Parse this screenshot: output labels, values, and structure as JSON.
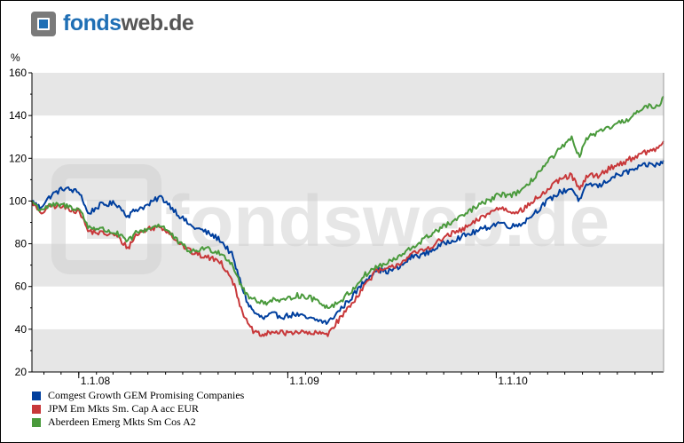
{
  "logo": {
    "part1": "fonds",
    "part2": "web.de"
  },
  "watermark": "fondsweb.de",
  "colors": {
    "blue": "#003f9e",
    "red": "#c8383a",
    "green": "#4a9a3c",
    "band": "#e6e6e6",
    "brand_blue": "#1f6fb5",
    "brand_gray": "#7a7a7a"
  },
  "chart_data": {
    "type": "line",
    "ylabel": "%",
    "ylim": [
      20,
      160
    ],
    "yticks": [
      20,
      40,
      60,
      80,
      100,
      120,
      140,
      160
    ],
    "xlim": [
      "2007-10-11",
      "2010-10-21"
    ],
    "xticks": [
      {
        "date": "2008-01-01",
        "label": "1.1.08"
      },
      {
        "date": "2009-01-01",
        "label": "1.1.09"
      },
      {
        "date": "2010-01-01",
        "label": "1.1.10"
      }
    ],
    "grid": "horizontal bands",
    "legend_position": "bottom-left",
    "series": [
      {
        "name": "Comgest Growth GEM Promising Companies",
        "color": "#003f9e",
        "points": [
          [
            "2007-10-11",
            100
          ],
          [
            "2007-10-25",
            97
          ],
          [
            "2007-11-15",
            103
          ],
          [
            "2007-12-06",
            106
          ],
          [
            "2008-01-03",
            104
          ],
          [
            "2008-01-17",
            94
          ],
          [
            "2008-02-07",
            98
          ],
          [
            "2008-03-06",
            99
          ],
          [
            "2008-03-27",
            93
          ],
          [
            "2008-04-10",
            96
          ],
          [
            "2008-05-01",
            98
          ],
          [
            "2008-05-22",
            102
          ],
          [
            "2008-06-05",
            99
          ],
          [
            "2008-06-26",
            93
          ],
          [
            "2008-07-17",
            88
          ],
          [
            "2008-08-07",
            86
          ],
          [
            "2008-09-04",
            82
          ],
          [
            "2008-09-25",
            75
          ],
          [
            "2008-10-09",
            63
          ],
          [
            "2008-10-23",
            52
          ],
          [
            "2008-11-06",
            47
          ],
          [
            "2008-11-20",
            45
          ],
          [
            "2008-12-04",
            47
          ],
          [
            "2008-12-25",
            46
          ],
          [
            "2009-01-15",
            47
          ],
          [
            "2009-02-05",
            45
          ],
          [
            "2009-02-26",
            44
          ],
          [
            "2009-03-12",
            43
          ],
          [
            "2009-04-02",
            49
          ],
          [
            "2009-04-23",
            55
          ],
          [
            "2009-05-14",
            62
          ],
          [
            "2009-06-04",
            68
          ],
          [
            "2009-06-25",
            67
          ],
          [
            "2009-07-16",
            69
          ],
          [
            "2009-08-06",
            74
          ],
          [
            "2009-08-27",
            75
          ],
          [
            "2009-09-17",
            78
          ],
          [
            "2009-10-08",
            81
          ],
          [
            "2009-10-29",
            83
          ],
          [
            "2009-11-19",
            85
          ],
          [
            "2009-12-10",
            87
          ],
          [
            "2010-01-07",
            90
          ],
          [
            "2010-01-28",
            88
          ],
          [
            "2010-02-18",
            90
          ],
          [
            "2010-03-11",
            95
          ],
          [
            "2010-04-01",
            100
          ],
          [
            "2010-04-22",
            104
          ],
          [
            "2010-05-13",
            106
          ],
          [
            "2010-05-27",
            100
          ],
          [
            "2010-06-10",
            108
          ],
          [
            "2010-07-01",
            107
          ],
          [
            "2010-07-22",
            111
          ],
          [
            "2010-08-12",
            113
          ],
          [
            "2010-09-02",
            115
          ],
          [
            "2010-09-23",
            117
          ],
          [
            "2010-10-14",
            117
          ],
          [
            "2010-10-21",
            119
          ]
        ]
      },
      {
        "name": "JPM Em Mkts Sm. Cap A acc EUR",
        "color": "#c8383a",
        "points": [
          [
            "2007-10-11",
            100
          ],
          [
            "2007-10-25",
            94
          ],
          [
            "2007-11-15",
            98
          ],
          [
            "2007-12-06",
            97
          ],
          [
            "2008-01-03",
            95
          ],
          [
            "2008-01-17",
            86
          ],
          [
            "2008-02-07",
            85
          ],
          [
            "2008-03-06",
            84
          ],
          [
            "2008-03-27",
            78
          ],
          [
            "2008-04-10",
            84
          ],
          [
            "2008-05-01",
            87
          ],
          [
            "2008-05-22",
            88
          ],
          [
            "2008-06-05",
            86
          ],
          [
            "2008-06-26",
            80
          ],
          [
            "2008-07-17",
            76
          ],
          [
            "2008-08-07",
            74
          ],
          [
            "2008-09-04",
            72
          ],
          [
            "2008-09-25",
            64
          ],
          [
            "2008-10-09",
            52
          ],
          [
            "2008-10-23",
            42
          ],
          [
            "2008-11-06",
            38
          ],
          [
            "2008-11-20",
            37
          ],
          [
            "2008-12-04",
            39
          ],
          [
            "2008-12-25",
            38
          ],
          [
            "2009-01-15",
            39
          ],
          [
            "2009-02-05",
            38
          ],
          [
            "2009-02-26",
            38
          ],
          [
            "2009-03-12",
            38
          ],
          [
            "2009-04-02",
            45
          ],
          [
            "2009-04-23",
            52
          ],
          [
            "2009-05-14",
            60
          ],
          [
            "2009-06-04",
            67
          ],
          [
            "2009-06-25",
            68
          ],
          [
            "2009-07-16",
            71
          ],
          [
            "2009-08-06",
            75
          ],
          [
            "2009-08-27",
            77
          ],
          [
            "2009-09-17",
            80
          ],
          [
            "2009-10-08",
            84
          ],
          [
            "2009-10-29",
            86
          ],
          [
            "2009-11-19",
            89
          ],
          [
            "2009-12-10",
            93
          ],
          [
            "2010-01-07",
            97
          ],
          [
            "2010-01-28",
            95
          ],
          [
            "2010-02-18",
            96
          ],
          [
            "2010-03-11",
            101
          ],
          [
            "2010-04-01",
            105
          ],
          [
            "2010-04-22",
            110
          ],
          [
            "2010-05-13",
            112
          ],
          [
            "2010-05-27",
            105
          ],
          [
            "2010-06-10",
            112
          ],
          [
            "2010-07-01",
            112
          ],
          [
            "2010-07-22",
            116
          ],
          [
            "2010-08-12",
            118
          ],
          [
            "2010-09-02",
            121
          ],
          [
            "2010-09-23",
            123
          ],
          [
            "2010-10-14",
            125
          ],
          [
            "2010-10-21",
            128
          ]
        ]
      },
      {
        "name": "Aberdeen Emerg Mkts Sm Cos A2",
        "color": "#4a9a3c",
        "points": [
          [
            "2007-10-11",
            100
          ],
          [
            "2007-10-25",
            96
          ],
          [
            "2007-11-15",
            98
          ],
          [
            "2007-12-06",
            98
          ],
          [
            "2008-01-03",
            96
          ],
          [
            "2008-01-17",
            88
          ],
          [
            "2008-02-07",
            87
          ],
          [
            "2008-03-06",
            85
          ],
          [
            "2008-03-27",
            81
          ],
          [
            "2008-04-10",
            85
          ],
          [
            "2008-05-01",
            87
          ],
          [
            "2008-05-22",
            89
          ],
          [
            "2008-06-05",
            86
          ],
          [
            "2008-06-26",
            80
          ],
          [
            "2008-07-17",
            76
          ],
          [
            "2008-08-07",
            78
          ],
          [
            "2008-09-04",
            76
          ],
          [
            "2008-09-25",
            71
          ],
          [
            "2008-10-09",
            62
          ],
          [
            "2008-10-23",
            55
          ],
          [
            "2008-11-06",
            54
          ],
          [
            "2008-11-20",
            52
          ],
          [
            "2008-12-04",
            54
          ],
          [
            "2008-12-25",
            53
          ],
          [
            "2009-01-15",
            56
          ],
          [
            "2009-02-05",
            55
          ],
          [
            "2009-02-26",
            53
          ],
          [
            "2009-03-12",
            50
          ],
          [
            "2009-04-02",
            53
          ],
          [
            "2009-04-23",
            58
          ],
          [
            "2009-05-14",
            65
          ],
          [
            "2009-06-04",
            69
          ],
          [
            "2009-06-25",
            71
          ],
          [
            "2009-07-16",
            74
          ],
          [
            "2009-08-06",
            78
          ],
          [
            "2009-08-27",
            82
          ],
          [
            "2009-09-17",
            86
          ],
          [
            "2009-10-08",
            89
          ],
          [
            "2009-10-29",
            92
          ],
          [
            "2009-11-19",
            96
          ],
          [
            "2009-12-10",
            99
          ],
          [
            "2010-01-07",
            103
          ],
          [
            "2010-01-28",
            103
          ],
          [
            "2010-02-18",
            105
          ],
          [
            "2010-03-11",
            112
          ],
          [
            "2010-04-01",
            118
          ],
          [
            "2010-04-22",
            124
          ],
          [
            "2010-05-13",
            129
          ],
          [
            "2010-05-27",
            121
          ],
          [
            "2010-06-10",
            130
          ],
          [
            "2010-07-01",
            132
          ],
          [
            "2010-07-22",
            135
          ],
          [
            "2010-08-12",
            137
          ],
          [
            "2010-09-02",
            141
          ],
          [
            "2010-09-23",
            144
          ],
          [
            "2010-10-14",
            145
          ],
          [
            "2010-10-21",
            149
          ]
        ]
      }
    ]
  }
}
